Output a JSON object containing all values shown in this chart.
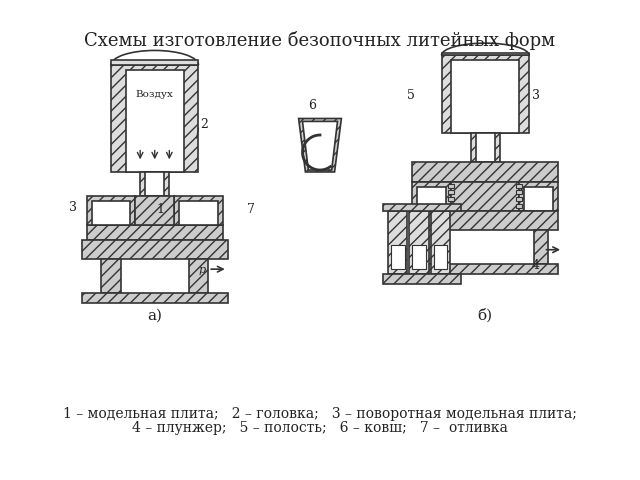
{
  "title": "Схемы изготовление безопочных литейных форм",
  "caption_line1": "1 – модельная плита;   2 – головка;   3 – поворотная модельная плита;",
  "caption_line2": "4 – плунжер;   5 – полость;   6 – ковш;   7 –  отливка",
  "label_a": "а)",
  "label_b": "б)",
  "bg_color": "#ffffff",
  "line_color": "#333333",
  "fill_color": "#cccccc",
  "hatch_color": "#555555",
  "title_fontsize": 13,
  "caption_fontsize": 10,
  "label_fontsize": 11
}
